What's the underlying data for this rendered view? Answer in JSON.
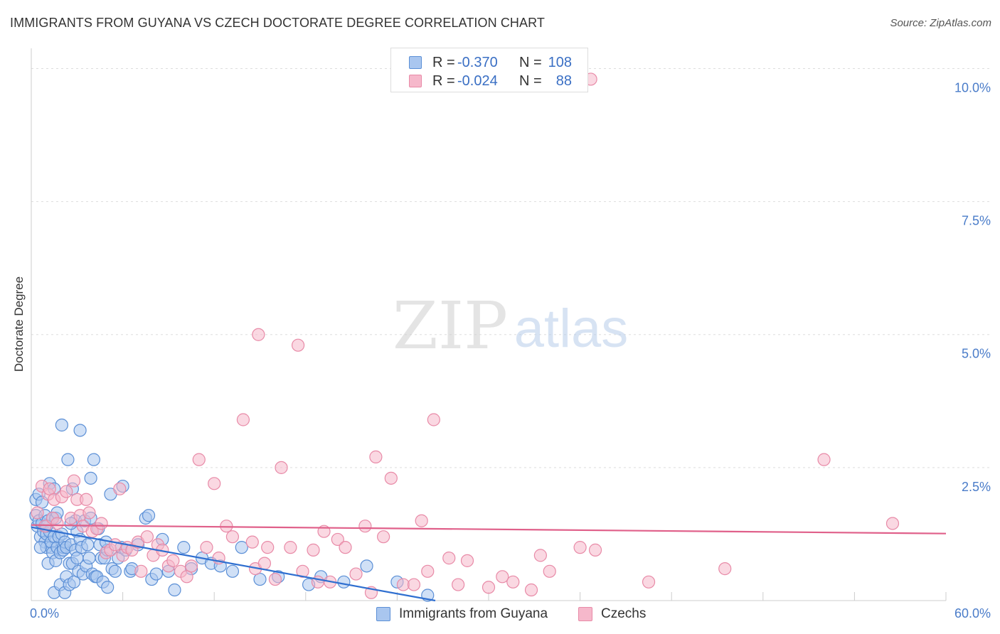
{
  "title": "IMMIGRANTS FROM GUYANA VS CZECH DOCTORATE DEGREE CORRELATION CHART",
  "source": "Source: ZipAtlas.com",
  "watermark": {
    "zip": "ZIP",
    "atlas": "atlas"
  },
  "colors": {
    "blue_fill": "#a9c6ef",
    "blue_stroke": "#5b8fd6",
    "blue_line": "#2f6fd0",
    "pink_fill": "#f6b8cb",
    "pink_stroke": "#e88aa7",
    "pink_line": "#e0608a",
    "axis_text": "#4a7cc9",
    "grid": "#dddddd"
  },
  "legend": {
    "rows": [
      {
        "r_label": "R =",
        "r_value": "-0.370",
        "n_label": "N =",
        "n_value": "108",
        "color": "blue"
      },
      {
        "r_label": "R =",
        "r_value": "-0.024",
        "n_label": "N =",
        "n_value": "88",
        "color": "pink"
      }
    ]
  },
  "bottom_legend": [
    {
      "label": "Immigrants from Guyana",
      "color": "blue"
    },
    {
      "label": "Czechs",
      "color": "pink"
    }
  ],
  "chart_data": {
    "type": "scatter",
    "title": "IMMIGRANTS FROM GUYANA VS CZECH DOCTORATE DEGREE CORRELATION CHART",
    "xlabel": "",
    "ylabel": "Doctorate Degree",
    "xlim": [
      0,
      60
    ],
    "ylim": [
      0,
      10.5
    ],
    "x_tick_labels": [
      {
        "value": 0,
        "label": "0.0%"
      },
      {
        "value": 60,
        "label": "60.0%"
      }
    ],
    "y_tick_labels": [
      {
        "value": 2.5,
        "label": "2.5%"
      },
      {
        "value": 5.0,
        "label": "5.0%"
      },
      {
        "value": 7.5,
        "label": "7.5%"
      },
      {
        "value": 10.0,
        "label": "10.0%"
      }
    ],
    "x_minor_ticks": [
      0,
      6,
      12,
      18,
      24,
      30,
      36,
      42,
      48,
      54,
      60
    ],
    "series": [
      {
        "name": "Immigrants from Guyana",
        "color": "blue",
        "trend": {
          "x0": 0,
          "y0": 1.38,
          "x1": 26.5,
          "y1": 0.0
        },
        "points": [
          [
            0.3,
            1.9
          ],
          [
            0.3,
            1.6
          ],
          [
            0.4,
            1.4
          ],
          [
            0.5,
            2.0
          ],
          [
            0.5,
            1.5
          ],
          [
            0.6,
            1.2
          ],
          [
            0.7,
            1.85
          ],
          [
            0.7,
            1.45
          ],
          [
            0.8,
            1.3
          ],
          [
            0.9,
            1.1
          ],
          [
            0.9,
            1.6
          ],
          [
            1.0,
            1.25
          ],
          [
            1.0,
            1.0
          ],
          [
            1.1,
            1.5
          ],
          [
            1.1,
            0.7
          ],
          [
            1.2,
            2.2
          ],
          [
            1.2,
            1.3
          ],
          [
            1.3,
            1.0
          ],
          [
            1.3,
            1.1
          ],
          [
            1.4,
            1.55
          ],
          [
            1.4,
            0.9
          ],
          [
            1.5,
            2.1
          ],
          [
            1.5,
            1.2
          ],
          [
            1.5,
            0.15
          ],
          [
            1.6,
            1.55
          ],
          [
            1.6,
            0.75
          ],
          [
            1.7,
            1.0
          ],
          [
            1.7,
            1.65
          ],
          [
            1.8,
            1.2
          ],
          [
            1.9,
            0.9
          ],
          [
            1.9,
            0.3
          ],
          [
            2.0,
            3.3
          ],
          [
            2.0,
            1.25
          ],
          [
            2.1,
            1.0
          ],
          [
            2.1,
            0.95
          ],
          [
            2.2,
            1.1
          ],
          [
            2.2,
            0.15
          ],
          [
            2.3,
            0.45
          ],
          [
            2.3,
            1.0
          ],
          [
            2.4,
            2.65
          ],
          [
            2.5,
            0.7
          ],
          [
            2.5,
            0.3
          ],
          [
            2.6,
            1.05
          ],
          [
            2.7,
            0.7
          ],
          [
            2.7,
            2.1
          ],
          [
            2.8,
            0.35
          ],
          [
            2.9,
            1.5
          ],
          [
            2.9,
            0.95
          ],
          [
            3.0,
            1.3
          ],
          [
            3.0,
            0.8
          ],
          [
            3.1,
            0.55
          ],
          [
            3.2,
            3.2
          ],
          [
            3.2,
            1.15
          ],
          [
            3.3,
            1.0
          ],
          [
            3.4,
            0.5
          ],
          [
            3.5,
            1.5
          ],
          [
            3.6,
            0.65
          ],
          [
            3.7,
            1.05
          ],
          [
            3.8,
            0.8
          ],
          [
            3.9,
            2.3
          ],
          [
            3.9,
            1.55
          ],
          [
            4.0,
            0.5
          ],
          [
            4.1,
            2.65
          ],
          [
            4.2,
            0.45
          ],
          [
            4.3,
            0.45
          ],
          [
            4.4,
            1.35
          ],
          [
            4.5,
            1.05
          ],
          [
            4.6,
            0.8
          ],
          [
            4.7,
            0.35
          ],
          [
            4.8,
            0.8
          ],
          [
            5.0,
            0.95
          ],
          [
            5.0,
            0.25
          ],
          [
            5.2,
            2.0
          ],
          [
            5.3,
            0.6
          ],
          [
            5.5,
            0.55
          ],
          [
            5.7,
            0.8
          ],
          [
            5.9,
            1.0
          ],
          [
            6.0,
            2.15
          ],
          [
            6.2,
            0.95
          ],
          [
            6.5,
            0.55
          ],
          [
            6.6,
            0.6
          ],
          [
            7.0,
            1.05
          ],
          [
            7.5,
            1.55
          ],
          [
            7.7,
            1.6
          ],
          [
            7.9,
            0.4
          ],
          [
            8.2,
            0.5
          ],
          [
            8.6,
            1.15
          ],
          [
            9.0,
            0.55
          ],
          [
            9.4,
            0.2
          ],
          [
            10.0,
            1.0
          ],
          [
            10.5,
            0.6
          ],
          [
            11.2,
            0.8
          ],
          [
            11.8,
            0.7
          ],
          [
            12.4,
            0.65
          ],
          [
            13.2,
            0.55
          ],
          [
            13.8,
            1.0
          ],
          [
            15.0,
            0.4
          ],
          [
            16.2,
            0.45
          ],
          [
            18.2,
            0.3
          ],
          [
            19.0,
            0.45
          ],
          [
            20.5,
            0.35
          ],
          [
            22.0,
            0.65
          ],
          [
            24.0,
            0.35
          ],
          [
            26.0,
            0.1
          ],
          [
            1.0,
            1.4
          ],
          [
            0.6,
            1.0
          ],
          [
            2.6,
            1.45
          ],
          [
            4.9,
            1.1
          ]
        ]
      },
      {
        "name": "Czechs",
        "color": "pink",
        "trend": {
          "x0": 0,
          "y0": 1.42,
          "x1": 60,
          "y1": 1.26
        },
        "points": [
          [
            0.4,
            1.65
          ],
          [
            0.7,
            2.15
          ],
          [
            0.9,
            1.4
          ],
          [
            1.1,
            2.0
          ],
          [
            1.2,
            2.1
          ],
          [
            1.4,
            1.55
          ],
          [
            1.5,
            1.9
          ],
          [
            1.7,
            1.45
          ],
          [
            2.0,
            1.95
          ],
          [
            2.3,
            2.05
          ],
          [
            2.6,
            1.55
          ],
          [
            2.8,
            2.25
          ],
          [
            3.0,
            1.9
          ],
          [
            3.2,
            1.6
          ],
          [
            3.4,
            1.4
          ],
          [
            3.6,
            1.9
          ],
          [
            3.8,
            1.65
          ],
          [
            4.0,
            1.3
          ],
          [
            4.3,
            1.35
          ],
          [
            4.6,
            1.45
          ],
          [
            4.9,
            0.9
          ],
          [
            5.2,
            0.95
          ],
          [
            5.5,
            1.05
          ],
          [
            5.8,
            2.1
          ],
          [
            6.0,
            0.85
          ],
          [
            6.3,
            1.0
          ],
          [
            6.6,
            0.95
          ],
          [
            7.0,
            1.1
          ],
          [
            7.2,
            0.55
          ],
          [
            7.6,
            1.2
          ],
          [
            8.0,
            0.85
          ],
          [
            8.3,
            1.05
          ],
          [
            8.6,
            0.95
          ],
          [
            9.0,
            0.65
          ],
          [
            9.3,
            0.75
          ],
          [
            9.8,
            0.55
          ],
          [
            10.2,
            0.45
          ],
          [
            10.5,
            0.65
          ],
          [
            11.0,
            2.65
          ],
          [
            11.5,
            1.0
          ],
          [
            12.0,
            2.2
          ],
          [
            12.3,
            0.8
          ],
          [
            12.8,
            1.4
          ],
          [
            13.2,
            1.2
          ],
          [
            13.9,
            3.4
          ],
          [
            14.5,
            1.1
          ],
          [
            14.7,
            0.6
          ],
          [
            14.9,
            5.0
          ],
          [
            15.3,
            0.7
          ],
          [
            15.5,
            1.0
          ],
          [
            16.0,
            0.4
          ],
          [
            16.4,
            2.5
          ],
          [
            17.0,
            1.0
          ],
          [
            17.5,
            4.8
          ],
          [
            17.8,
            0.55
          ],
          [
            18.5,
            0.95
          ],
          [
            18.8,
            0.35
          ],
          [
            19.2,
            1.3
          ],
          [
            19.6,
            0.35
          ],
          [
            20.1,
            1.15
          ],
          [
            20.6,
            1.0
          ],
          [
            21.3,
            0.5
          ],
          [
            21.9,
            1.4
          ],
          [
            22.3,
            0.15
          ],
          [
            22.6,
            2.7
          ],
          [
            23.1,
            1.2
          ],
          [
            23.6,
            2.3
          ],
          [
            24.4,
            0.3
          ],
          [
            25.1,
            0.3
          ],
          [
            25.6,
            1.5
          ],
          [
            26.0,
            0.55
          ],
          [
            26.4,
            3.4
          ],
          [
            27.4,
            0.8
          ],
          [
            28.0,
            0.3
          ],
          [
            28.6,
            0.75
          ],
          [
            30.0,
            0.25
          ],
          [
            30.9,
            0.45
          ],
          [
            31.6,
            0.35
          ],
          [
            32.8,
            0.2
          ],
          [
            33.4,
            0.85
          ],
          [
            34.0,
            0.55
          ],
          [
            36.0,
            1.0
          ],
          [
            37.0,
            0.95
          ],
          [
            40.5,
            0.35
          ],
          [
            45.5,
            0.6
          ],
          [
            52.0,
            2.65
          ],
          [
            56.5,
            1.45
          ],
          [
            36.7,
            9.8
          ]
        ]
      }
    ]
  }
}
